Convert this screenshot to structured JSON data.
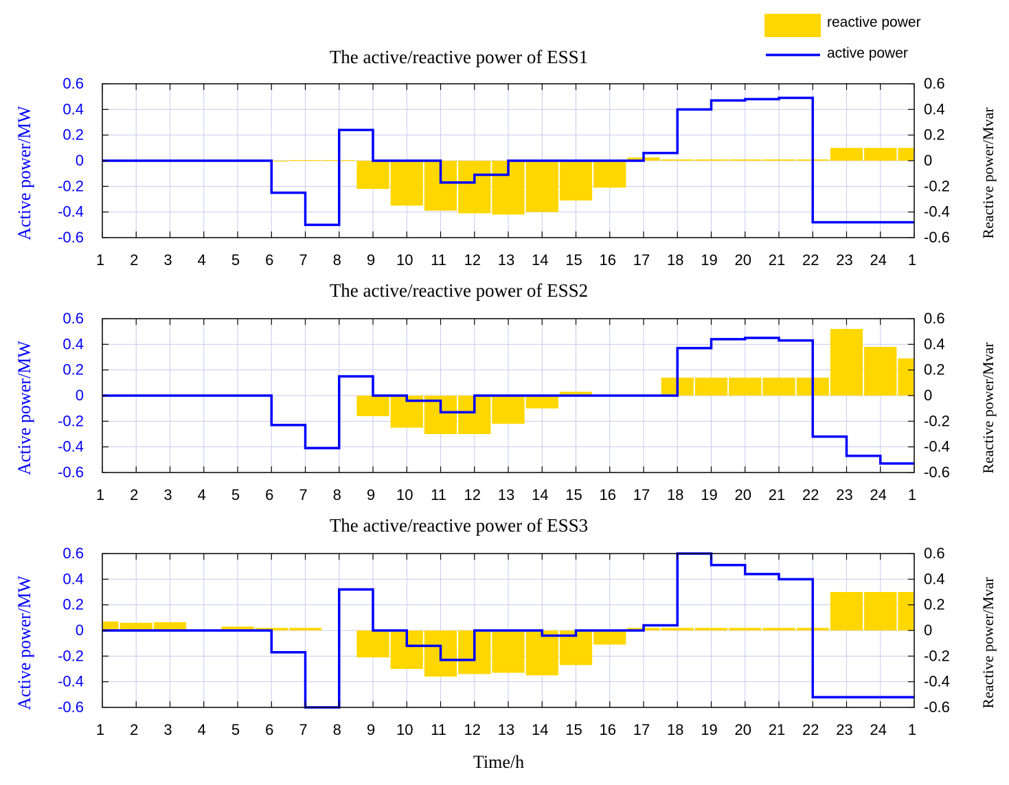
{
  "figure": {
    "xlabel": "Time/h",
    "legend": {
      "position": "top-right",
      "reactive_label": "reactive power",
      "active_label": "active power"
    },
    "colors": {
      "active": "#0000ff",
      "reactive": "#ffd700",
      "grid": "#c8c8f0",
      "axis": "#000000"
    }
  },
  "chart_data": [
    {
      "type": "bar",
      "title": "The active/reactive power of ESS1",
      "ylabel_left": "Active power/MW",
      "ylabel_right": "Reactive power/Mvar",
      "ylim": [
        -0.6,
        0.6
      ],
      "y_ticks": [
        "0.6",
        "0.4",
        "0.2",
        "0",
        "-0.2",
        "-0.4",
        "-0.6"
      ],
      "x_ticks": [
        "1",
        "2",
        "3",
        "4",
        "5",
        "6",
        "7",
        "8",
        "9",
        "10",
        "11",
        "12",
        "13",
        "14",
        "15",
        "16",
        "17",
        "18",
        "19",
        "20",
        "21",
        "22",
        "23",
        "24",
        "1"
      ],
      "series": [
        {
          "name": "reactive power",
          "kind": "bar",
          "values": [
            0,
            0,
            0,
            0,
            0,
            -0.005,
            0.005,
            0.005,
            -0.22,
            -0.35,
            -0.39,
            -0.41,
            -0.42,
            -0.4,
            -0.31,
            -0.21,
            0.025,
            0.01,
            0.01,
            0.01,
            0.01,
            0.01,
            0.1,
            0.1,
            0.1
          ]
        },
        {
          "name": "active power",
          "kind": "step",
          "values": [
            0,
            0,
            0,
            0,
            0,
            -0.25,
            -0.5,
            0.24,
            0,
            0,
            -0.17,
            -0.11,
            0,
            0,
            0,
            0,
            0.06,
            0.4,
            0.47,
            0.48,
            0.49,
            -0.48,
            -0.48,
            -0.48
          ]
        }
      ]
    },
    {
      "type": "bar",
      "title": "The active/reactive power of ESS2",
      "ylabel_left": "Active power/MW",
      "ylabel_right": "Reactive power/Mvar",
      "ylim": [
        -0.6,
        0.6
      ],
      "y_ticks": [
        "0.6",
        "0.4",
        "0.2",
        "0",
        "-0.2",
        "-0.4",
        "-0.6"
      ],
      "x_ticks": [
        "1",
        "2",
        "3",
        "4",
        "5",
        "6",
        "7",
        "8",
        "9",
        "10",
        "11",
        "12",
        "13",
        "14",
        "15",
        "16",
        "17",
        "18",
        "19",
        "20",
        "21",
        "22",
        "23",
        "24",
        "1"
      ],
      "series": [
        {
          "name": "reactive power",
          "kind": "bar",
          "values": [
            0,
            0,
            0,
            0,
            0,
            0,
            0,
            0,
            -0.16,
            -0.25,
            -0.3,
            -0.3,
            -0.22,
            -0.1,
            0.03,
            0,
            0,
            0.14,
            0.14,
            0.14,
            0.14,
            0.14,
            0.52,
            0.38,
            0.29
          ]
        },
        {
          "name": "active power",
          "kind": "step",
          "values": [
            0,
            0,
            0,
            0,
            0,
            -0.23,
            -0.41,
            0.15,
            0,
            -0.04,
            -0.13,
            0,
            0,
            0,
            0,
            0,
            0,
            0.37,
            0.44,
            0.45,
            0.43,
            -0.32,
            -0.47,
            -0.53
          ]
        }
      ]
    },
    {
      "type": "bar",
      "title": "The active/reactive power of ESS3",
      "ylabel_left": "Active power/MW",
      "ylabel_right": "Reactive power/Mvar",
      "ylim": [
        -0.6,
        0.6
      ],
      "y_ticks": [
        "0.6",
        "0.4",
        "0.2",
        "0",
        "-0.2",
        "-0.4",
        "-0.6"
      ],
      "x_ticks": [
        "1",
        "2",
        "3",
        "4",
        "5",
        "6",
        "7",
        "8",
        "9",
        "10",
        "11",
        "12",
        "13",
        "14",
        "15",
        "16",
        "17",
        "18",
        "19",
        "20",
        "21",
        "22",
        "23",
        "24",
        "1"
      ],
      "series": [
        {
          "name": "reactive power",
          "kind": "bar",
          "values": [
            0.07,
            0.06,
            0.065,
            0,
            0.03,
            0.02,
            0.02,
            0,
            -0.21,
            -0.3,
            -0.36,
            -0.34,
            -0.33,
            -0.35,
            -0.27,
            -0.11,
            0.02,
            0.02,
            0.02,
            0.02,
            0.02,
            0.02,
            0.3,
            0.3,
            0.3
          ]
        },
        {
          "name": "active power",
          "kind": "step",
          "values": [
            0,
            0,
            0,
            0,
            0,
            -0.17,
            -0.6,
            0.32,
            0,
            -0.12,
            -0.23,
            0,
            0,
            -0.04,
            0,
            0,
            0.04,
            0.6,
            0.51,
            0.44,
            0.4,
            -0.52,
            -0.52,
            -0.52
          ]
        }
      ]
    }
  ]
}
